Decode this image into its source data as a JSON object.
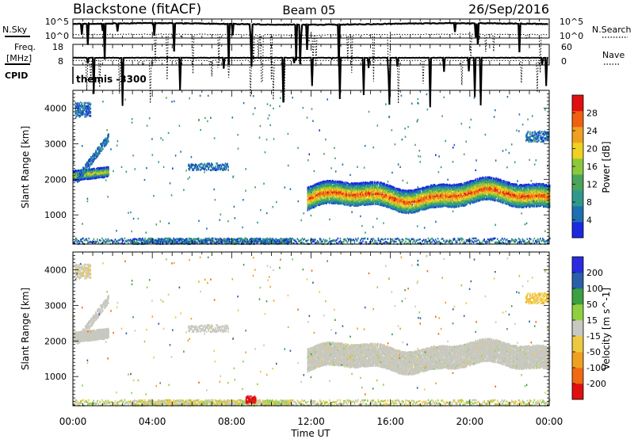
{
  "header": {
    "title": "Blackstone (fitACF)",
    "beam": "Beam 05",
    "date": "26/Sep/2016"
  },
  "noise_panel": {
    "left_label": "N.Sky",
    "right_label": "N.Search",
    "ticks_left": [
      "10^5",
      "10^0"
    ],
    "ticks_right": [
      "10^5",
      "10^0"
    ]
  },
  "freq_panel": {
    "left_label_1": "Freq.",
    "left_label_2": "[MHz]",
    "right_label": "Nave",
    "ticks_left": [
      "18",
      "8"
    ],
    "ticks_right": [
      "60",
      "0"
    ]
  },
  "cpid": {
    "label": "CPID",
    "value": "themis -3300"
  },
  "x_axis": {
    "label": "Time UT",
    "ticks": [
      "00:00",
      "04:00",
      "08:00",
      "12:00",
      "16:00",
      "20:00",
      "00:00"
    ]
  },
  "colors": {
    "power_scale": [
      "#1a2ae0",
      "#1e6fb0",
      "#2f9a8c",
      "#4aa55a",
      "#8cc83c",
      "#f0d020",
      "#f0a020",
      "#f06010",
      "#e01010"
    ],
    "velocity_scale": [
      "#e01010",
      "#f06a10",
      "#f0a020",
      "#f0c840",
      "#c8c8c0",
      "#90d040",
      "#3aa040",
      "#2860a8",
      "#2a2ae0"
    ]
  },
  "chart_data": [
    {
      "type": "heatmap",
      "title": "",
      "xlabel": "Time UT",
      "ylabel": "Slant Range [km]",
      "xlim": [
        0,
        24
      ],
      "ylim": [
        180,
        4500
      ],
      "yticks": [
        "1000",
        "2000",
        "3000",
        "4000"
      ],
      "colorbar": {
        "label": "Power [dB]",
        "ticks": [
          "4",
          "8",
          "12",
          "16",
          "20",
          "24",
          "28"
        ],
        "range": [
          0,
          30
        ]
      },
      "grid": false,
      "features": [
        {
          "name": "main echo band",
          "x_start": 11.8,
          "x_end": 24,
          "y_center": 1500,
          "y_halfwidth": 320,
          "power_peak": 28
        },
        {
          "name": "early echo band",
          "x_start": 0,
          "x_end": 1.8,
          "y_center": 2100,
          "y_halfwidth": 140,
          "power_peak": 24
        },
        {
          "name": "rising echo arc",
          "x_start": 0.2,
          "x_end": 1.8,
          "y_start": 2000,
          "y_end": 3200,
          "power_peak": 8
        },
        {
          "name": "high range patch",
          "x_start": 0.1,
          "x_end": 0.9,
          "y_center": 3950,
          "y_halfwidth": 200,
          "power_peak": 8
        },
        {
          "name": "morning patch",
          "x_start": 5.8,
          "x_end": 7.8,
          "y_center": 2350,
          "y_halfwidth": 100,
          "power_peak": 8
        },
        {
          "name": "late evening patch",
          "x_start": 22.8,
          "x_end": 24,
          "y_center": 3200,
          "y_halfwidth": 150,
          "power_peak": 8
        },
        {
          "name": "ground scatter strip",
          "x_start": 0,
          "x_end": 24,
          "y_center": 260,
          "y_halfwidth": 80,
          "power_peak": 12
        }
      ]
    },
    {
      "type": "heatmap",
      "title": "",
      "xlabel": "Time UT",
      "ylabel": "Slant Range [km]",
      "xlim": [
        0,
        24
      ],
      "ylim": [
        180,
        4500
      ],
      "yticks": [
        "1000",
        "2000",
        "3000",
        "4000"
      ],
      "colorbar": {
        "label": "Velocity [m s^-1]",
        "ticks": [
          "-200",
          "-100",
          "-50",
          "-15",
          "15",
          "50",
          "100",
          "200"
        ],
        "range": [
          -250,
          250
        ]
      },
      "grid": false,
      "features": [
        {
          "name": "main echo band",
          "x_start": 11.8,
          "x_end": 24,
          "y_center": 1500,
          "y_halfwidth": 320,
          "velocity": 0
        },
        {
          "name": "early echo band",
          "x_start": 0,
          "x_end": 1.8,
          "y_center": 2100,
          "y_halfwidth": 140,
          "velocity": 0
        },
        {
          "name": "high range patch",
          "x_start": 0.1,
          "x_end": 0.9,
          "y_center": 3950,
          "y_halfwidth": 200,
          "velocity": -30
        },
        {
          "name": "late evening patch",
          "x_start": 22.8,
          "x_end": 24,
          "y_center": 3200,
          "y_halfwidth": 150,
          "velocity": -60
        },
        {
          "name": "strong negative patch",
          "x_start": 8.7,
          "x_end": 9.2,
          "y_center": 350,
          "y_halfwidth": 100,
          "velocity": -220
        }
      ]
    }
  ]
}
